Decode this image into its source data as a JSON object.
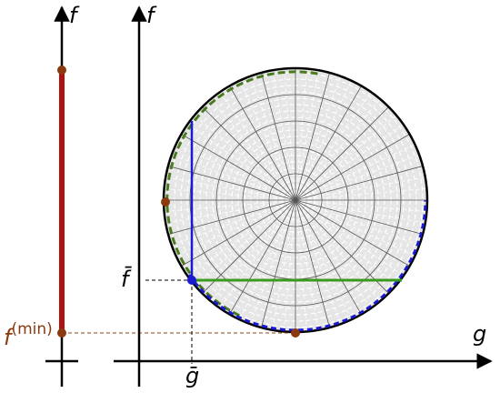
{
  "labels": {
    "f_left": "f",
    "f_right": "f",
    "g": "g",
    "f_bar": "f̄",
    "g_bar": "ḡ",
    "fmin": {
      "base": "f",
      "sup": "(min)"
    }
  }
}
